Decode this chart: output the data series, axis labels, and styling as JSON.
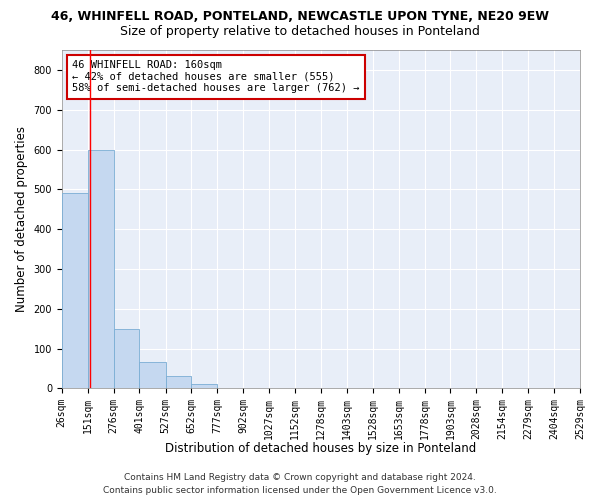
{
  "title1": "46, WHINFELL ROAD, PONTELAND, NEWCASTLE UPON TYNE, NE20 9EW",
  "title2": "Size of property relative to detached houses in Ponteland",
  "xlabel": "Distribution of detached houses by size in Ponteland",
  "ylabel": "Number of detached properties",
  "bar_color": "#c5d8f0",
  "bar_edge_color": "#7aadd4",
  "plot_bg_color": "#e8eef8",
  "fig_bg_color": "#ffffff",
  "grid_color": "#ffffff",
  "red_line_x": 160,
  "annotation_text": "46 WHINFELL ROAD: 160sqm\n← 42% of detached houses are smaller (555)\n58% of semi-detached houses are larger (762) →",
  "annotation_box_color": "#ffffff",
  "annotation_box_edge": "#cc0000",
  "bin_edges": [
    26,
    151,
    276,
    401,
    527,
    652,
    777,
    902,
    1027,
    1152,
    1278,
    1403,
    1528,
    1653,
    1778,
    1903,
    2028,
    2154,
    2279,
    2404,
    2529
  ],
  "bar_heights": [
    490,
    600,
    150,
    65,
    30,
    10,
    0,
    0,
    0,
    0,
    0,
    0,
    0,
    0,
    0,
    0,
    0,
    0,
    0,
    0
  ],
  "ylim": [
    0,
    850
  ],
  "yticks": [
    0,
    100,
    200,
    300,
    400,
    500,
    600,
    700,
    800
  ],
  "footer_text": "Contains HM Land Registry data © Crown copyright and database right 2024.\nContains public sector information licensed under the Open Government Licence v3.0.",
  "title1_fontsize": 9,
  "title2_fontsize": 9,
  "xlabel_fontsize": 8.5,
  "ylabel_fontsize": 8.5,
  "tick_fontsize": 7,
  "annotation_fontsize": 7.5,
  "footer_fontsize": 6.5
}
